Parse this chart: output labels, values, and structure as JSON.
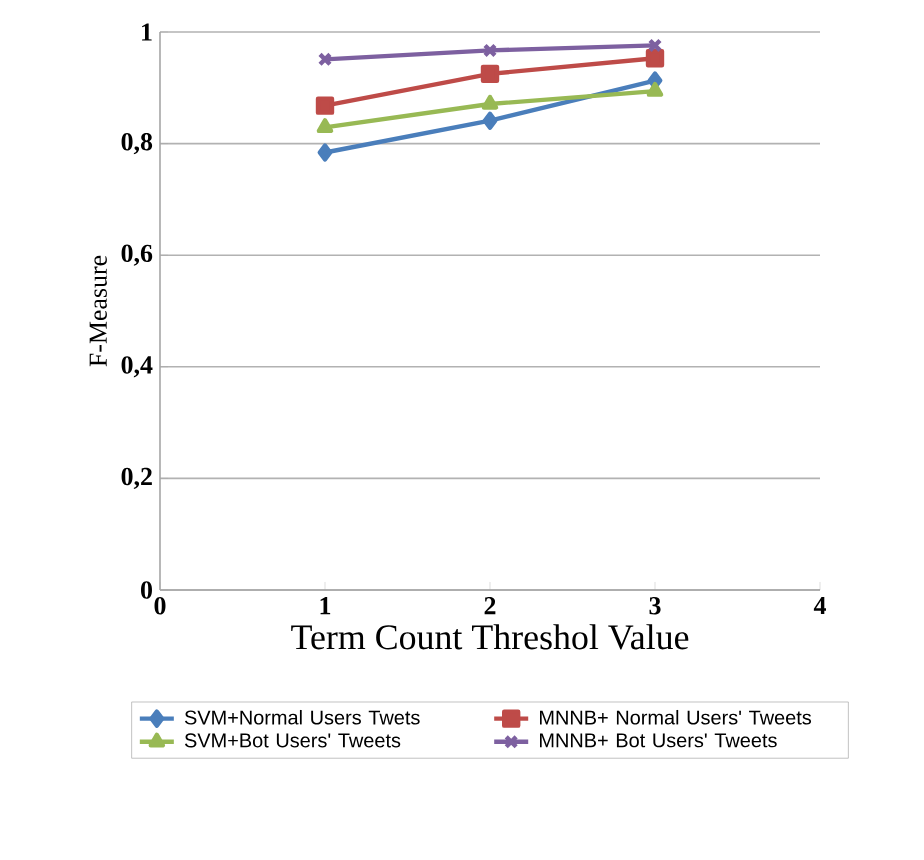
{
  "chart_data": {
    "type": "line",
    "xlabel": "Term Count Threshol Value",
    "ylabel": "F-Measure",
    "x": [
      1,
      2,
      3
    ],
    "series": [
      {
        "name": "SVM+Normal Users Twets",
        "color": "#4a7ebb",
        "marker": "diamond",
        "values": [
          0.784,
          0.841,
          0.913
        ]
      },
      {
        "name": "MNNB+ Normal Users' Tweets",
        "color": "#be4b48",
        "marker": "square",
        "values": [
          0.868,
          0.925,
          0.953
        ]
      },
      {
        "name": "SVM+Bot Users' Tweets",
        "color": "#98b954",
        "marker": "triangle",
        "values": [
          0.829,
          0.871,
          0.894
        ]
      },
      {
        "name": "MNNB+ Bot Users' Tweets",
        "color": "#7d60a0",
        "marker": "cross",
        "values": [
          0.951,
          0.967,
          0.976
        ]
      }
    ],
    "xlim": [
      0,
      4
    ],
    "xticks": [
      0,
      1,
      2,
      3,
      4
    ],
    "ylim": [
      0,
      1
    ],
    "yticks": [
      0,
      {
        "value": 0.2,
        "label": "0,2"
      },
      {
        "value": 0.4,
        "label": "0,4"
      },
      {
        "value": 0.6,
        "label": "0,6"
      },
      {
        "value": 0.8,
        "label": "0,8"
      },
      1
    ],
    "grid": "y",
    "legend": "bottom",
    "line_style": "solid"
  }
}
